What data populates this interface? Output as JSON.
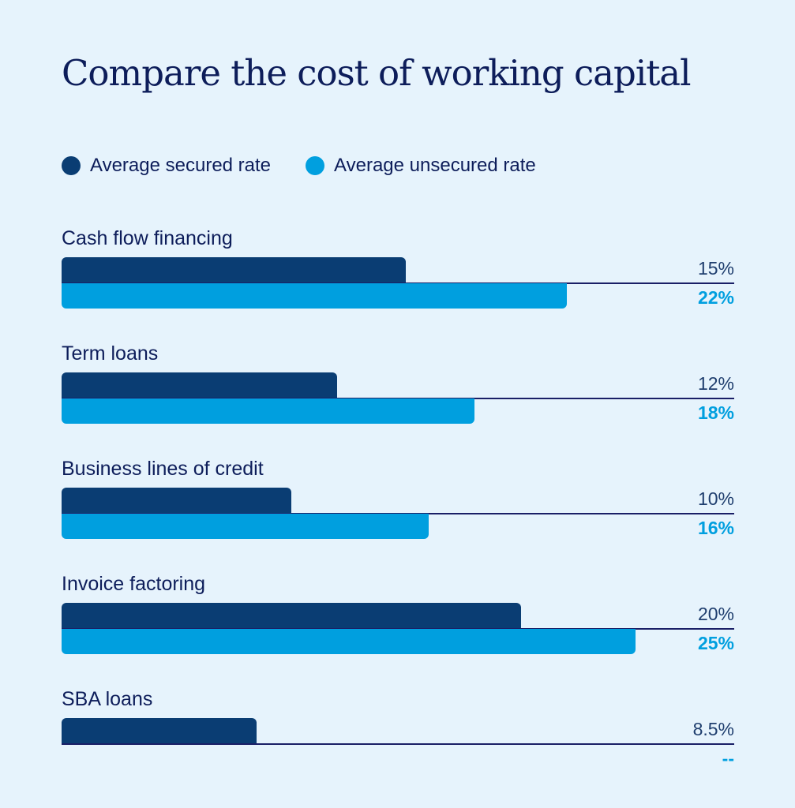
{
  "chart_data": {
    "type": "bar",
    "orientation": "horizontal",
    "title": "Compare the cost of working capital",
    "categories": [
      "Cash flow financing",
      "Term loans",
      "Business lines of credit",
      "Invoice factoring",
      "SBA loans"
    ],
    "series": [
      {
        "name": "Average secured rate",
        "color": "#0a3d73",
        "values": [
          15,
          12,
          10,
          20,
          8.5
        ],
        "labels": [
          "15%",
          "12%",
          "10%",
          "20%",
          "8.5%"
        ]
      },
      {
        "name": "Average unsecured rate",
        "color": "#009fdf",
        "values": [
          22,
          18,
          16,
          25,
          null
        ],
        "labels": [
          "22%",
          "18%",
          "16%",
          "25%",
          "--"
        ]
      }
    ],
    "xlim": [
      0,
      25
    ],
    "grid": false,
    "legend": "top-left"
  }
}
